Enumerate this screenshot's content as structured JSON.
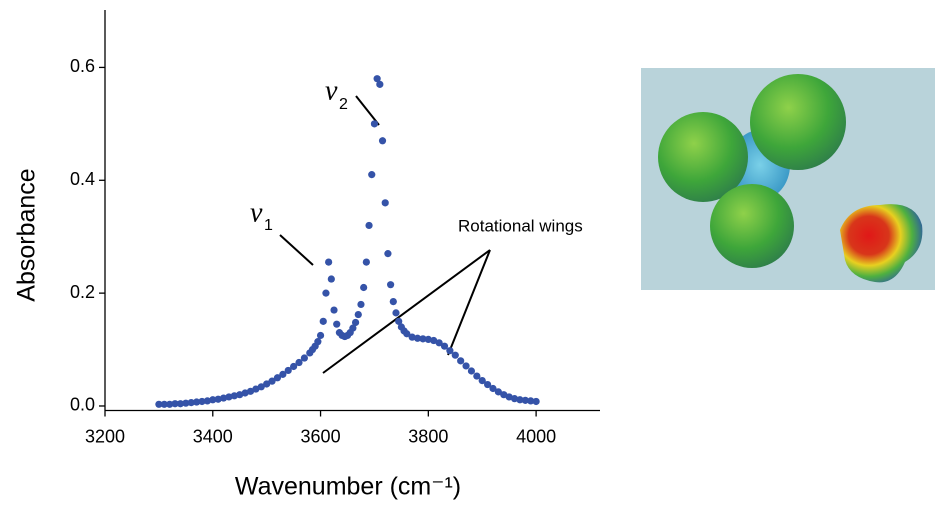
{
  "chart_data": {
    "type": "scatter",
    "xlabel": "Wavenumber (cm⁻¹)",
    "ylabel": "Absorbance",
    "annotations": [
      {
        "symbol": "ν",
        "subscript": "1"
      },
      {
        "symbol": "ν",
        "subscript": "2"
      },
      {
        "text": "Rotational wings"
      }
    ],
    "xlim": [
      3200,
      4100
    ],
    "ylim": [
      -0.008,
      0.7
    ],
    "xticks": [
      3200,
      3400,
      3600,
      3800,
      4000
    ],
    "yticks": [
      {
        "value": 0,
        "label": "0.0"
      },
      0.2,
      0.4,
      0.6
    ],
    "color": "#3553a8",
    "x": [
      3300,
      3310,
      3320,
      3330,
      3340,
      3350,
      3360,
      3370,
      3380,
      3390,
      3400,
      3410,
      3420,
      3430,
      3440,
      3450,
      3460,
      3470,
      3480,
      3490,
      3500,
      3510,
      3520,
      3530,
      3540,
      3550,
      3560,
      3570,
      3580,
      3585,
      3590,
      3595,
      3600,
      3605,
      3610,
      3615,
      3620,
      3625,
      3630,
      3635,
      3640,
      3645,
      3650,
      3655,
      3660,
      3665,
      3670,
      3675,
      3680,
      3685,
      3690,
      3695,
      3700,
      3705,
      3710,
      3715,
      3720,
      3725,
      3730,
      3735,
      3740,
      3745,
      3750,
      3755,
      3760,
      3770,
      3780,
      3790,
      3800,
      3810,
      3820,
      3830,
      3840,
      3850,
      3860,
      3870,
      3880,
      3890,
      3900,
      3910,
      3920,
      3930,
      3940,
      3950,
      3960,
      3970,
      3980,
      3990,
      4000
    ],
    "values": [
      0.003,
      0.003,
      0.003,
      0.004,
      0.004,
      0.005,
      0.006,
      0.007,
      0.008,
      0.009,
      0.011,
      0.012,
      0.014,
      0.016,
      0.018,
      0.02,
      0.023,
      0.026,
      0.03,
      0.034,
      0.039,
      0.044,
      0.05,
      0.056,
      0.063,
      0.07,
      0.077,
      0.085,
      0.094,
      0.1,
      0.106,
      0.114,
      0.125,
      0.15,
      0.2,
      0.255,
      0.225,
      0.17,
      0.145,
      0.13,
      0.125,
      0.123,
      0.125,
      0.13,
      0.138,
      0.148,
      0.162,
      0.18,
      0.21,
      0.255,
      0.32,
      0.41,
      0.5,
      0.58,
      0.57,
      0.47,
      0.36,
      0.27,
      0.215,
      0.185,
      0.165,
      0.15,
      0.14,
      0.133,
      0.128,
      0.122,
      0.12,
      0.119,
      0.118,
      0.116,
      0.112,
      0.106,
      0.098,
      0.09,
      0.08,
      0.071,
      0.062,
      0.053,
      0.045,
      0.038,
      0.031,
      0.025,
      0.02,
      0.016,
      0.013,
      0.011,
      0.01,
      0.009,
      0.008
    ]
  }
}
